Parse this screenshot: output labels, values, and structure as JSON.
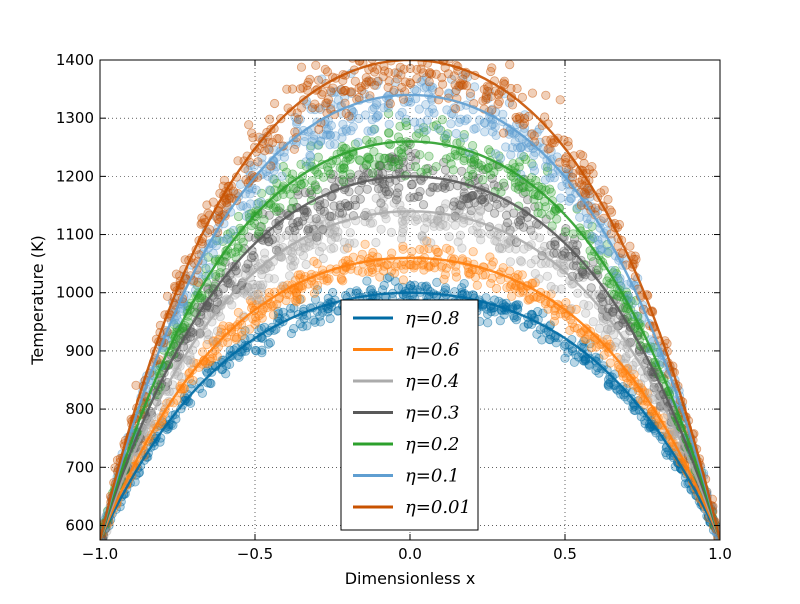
{
  "chart_data": {
    "type": "scatter",
    "xlabel": "Dimensionless x",
    "ylabel": "Temperature (K)",
    "xlim": [
      -1.0,
      1.0
    ],
    "ylim": [
      575,
      1400
    ],
    "xticks": [
      -1.0,
      -0.5,
      0.0,
      0.5,
      1.0
    ],
    "xtick_labels": [
      "−1.0",
      "−0.5",
      "0.0",
      "0.5",
      "1.0"
    ],
    "yticks": [
      600,
      700,
      800,
      900,
      1000,
      1100,
      1200,
      1300,
      1400
    ],
    "ytick_labels": [
      "600",
      "700",
      "800",
      "900",
      "1000",
      "1100",
      "1200",
      "1300",
      "1400"
    ],
    "grid": true,
    "grid_style": "dotted",
    "legend_placement": "bottom-center",
    "boundary_temperature": 575,
    "series": [
      {
        "name": "η=0.8",
        "color": "#006ba4",
        "peak": 1000,
        "scatter_spread": 18
      },
      {
        "name": "η=0.6",
        "color": "#ff800e",
        "peak": 1060,
        "scatter_spread": 18
      },
      {
        "name": "η=0.4",
        "color": "#ababab",
        "peak": 1140,
        "scatter_spread": 30
      },
      {
        "name": "η=0.3",
        "color": "#595959",
        "peak": 1200,
        "scatter_spread": 30
      },
      {
        "name": "η=0.2",
        "color": "#2ca02c",
        "peak": 1260,
        "scatter_spread": 30
      },
      {
        "name": "η=0.1",
        "color": "#5f9ed1",
        "peak": 1340,
        "scatter_spread": 35
      },
      {
        "name": "η=0.01",
        "color": "#c85200",
        "peak": 1400,
        "scatter_spread": 40
      }
    ],
    "legend_items": [
      {
        "symbol": "η",
        "value": "=0.8"
      },
      {
        "symbol": "η",
        "value": "=0.6"
      },
      {
        "symbol": "η",
        "value": "=0.4"
      },
      {
        "symbol": "η",
        "value": "=0.3"
      },
      {
        "symbol": "η",
        "value": "=0.2"
      },
      {
        "symbol": "η",
        "value": "=0.1"
      },
      {
        "symbol": "η",
        "value": "=0.01"
      }
    ]
  }
}
